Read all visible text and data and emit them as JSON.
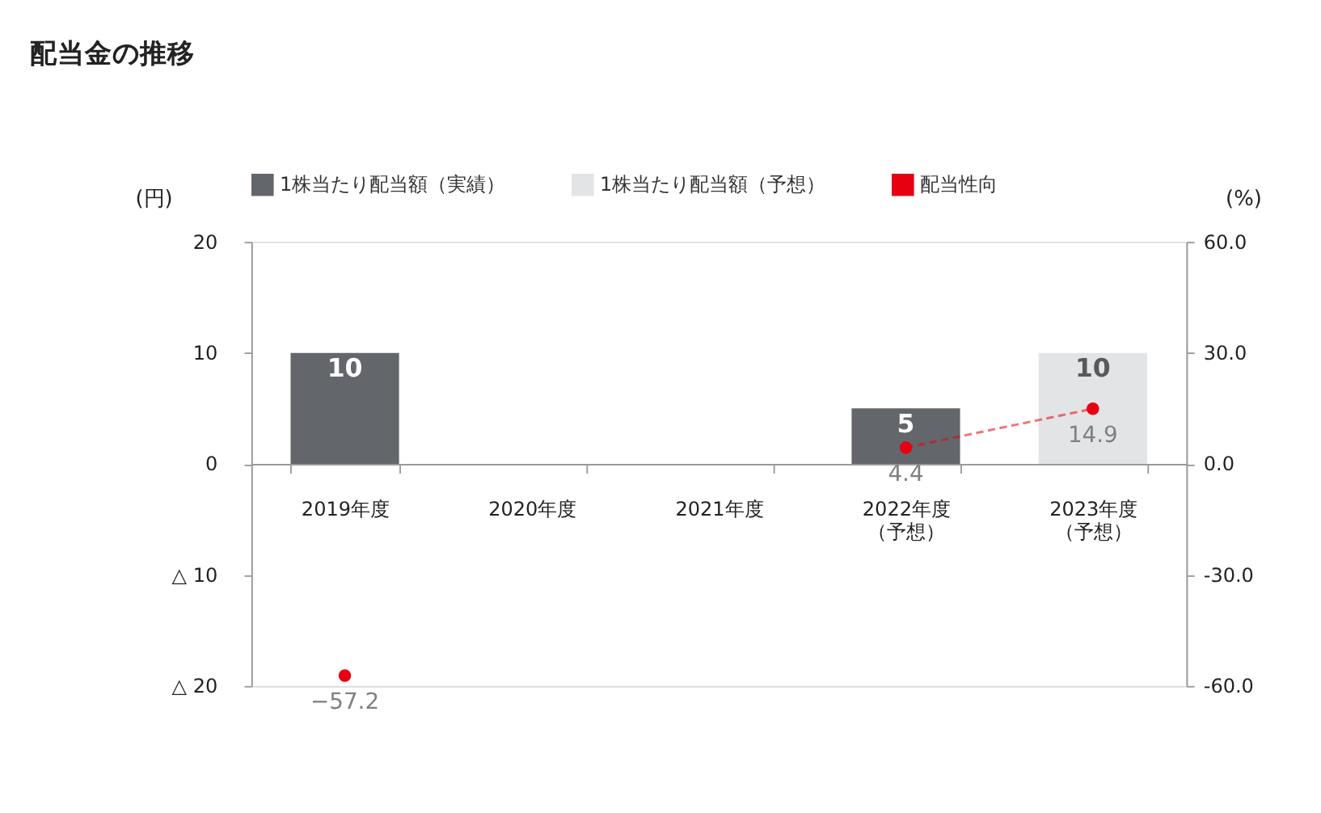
{
  "chart_data": {
    "type": "bar",
    "title": "配当金の推移",
    "categories": [
      "2019年度",
      "2020年度",
      "2021年度",
      "2022年度（予想）",
      "2023年度（予想）"
    ],
    "series": [
      {
        "name": "1株当たり配当額（実績）",
        "color": "#63666a",
        "values": [
          10,
          null,
          null,
          5,
          null
        ]
      },
      {
        "name": "1株当たり配当額（予想）",
        "color": "#e3e4e5",
        "values": [
          null,
          null,
          null,
          null,
          10
        ]
      },
      {
        "name": "配当性向",
        "type": "line",
        "axis": "y2",
        "color": "#e60012",
        "line_style": "dashed",
        "marker": "circle",
        "values": [
          -57.2,
          null,
          null,
          4.4,
          14.9
        ]
      }
    ],
    "ylabel": "(円)",
    "y2label": "(%)",
    "ylim": [
      -20,
      20
    ],
    "yticks": [
      20,
      10,
      0,
      {
        "value": -10,
        "label": "△ 10"
      },
      {
        "value": -20,
        "label": "△ 20"
      }
    ],
    "y2lim": [
      -60,
      60
    ],
    "y2ticks": [
      {
        "value": 60,
        "label": "60.0"
      },
      {
        "value": 30,
        "label": "30.0"
      },
      {
        "value": 0,
        "label": "0.0"
      },
      {
        "value": -30,
        "label": "-30.0"
      },
      {
        "value": -60,
        "label": "-60.0"
      }
    ],
    "data_labels": true,
    "grid": false,
    "legend": "top"
  }
}
